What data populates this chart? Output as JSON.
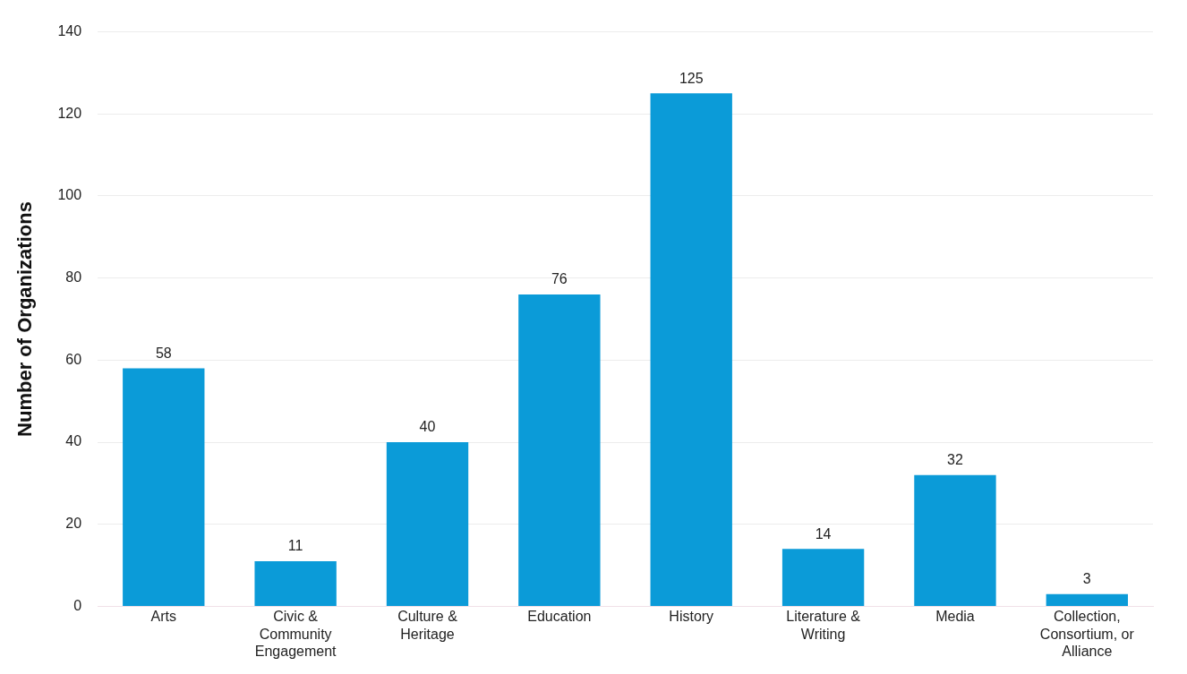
{
  "chart_data": {
    "type": "bar",
    "ylabel": "Number of Organizations",
    "categories": [
      "Arts",
      "Civic & Community Engagement",
      "Culture & Heritage",
      "Education",
      "History",
      "Literature & Writing",
      "Media",
      "Collection, Consortium, or Alliance"
    ],
    "values": [
      58,
      11,
      40,
      76,
      125,
      14,
      32,
      3
    ],
    "color": "#0b9bd8",
    "ylim": [
      0,
      140
    ],
    "yticks": [
      0,
      20,
      40,
      60,
      80,
      100,
      120,
      140
    ],
    "grid": "y",
    "data_labels": true
  }
}
